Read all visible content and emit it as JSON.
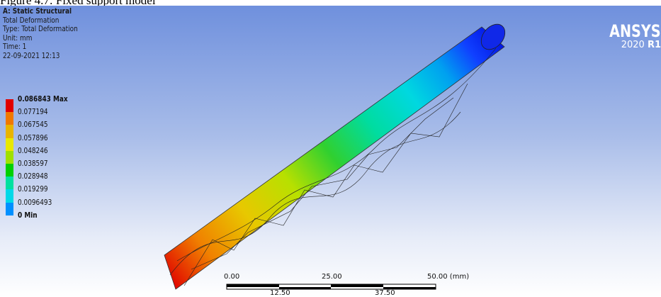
{
  "caption": "Figure 4.7: Fixed support model",
  "header": {
    "lines": [
      "A: Static Structural",
      "Total Deformation",
      "Type: Total Deformation",
      "Unit: mm",
      "Time: 1",
      "22-09-2021 12:13"
    ]
  },
  "legend": {
    "labels": [
      "0.086843 Max",
      "0.077194",
      "0.067545",
      "0.057896",
      "0.048246",
      "0.038597",
      "0.028948",
      "0.019299",
      "0.0096493",
      "0 Min"
    ]
  },
  "logo": {
    "brand": "ANSYS",
    "year": "2020",
    "release": "R1"
  },
  "scale_bar": {
    "top_labels": [
      "0.00",
      "25.00",
      "50.00 (mm)"
    ],
    "bottom_labels": [
      "12.50",
      "37.50"
    ]
  }
}
